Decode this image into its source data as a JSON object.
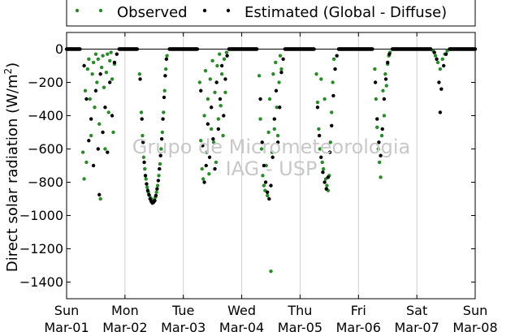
{
  "chart_data": {
    "type": "scatter",
    "ylabel": "Direct solar radiation (W/m",
    "ylabel_sup": "2",
    "ylabel_suffix": ")",
    "ylim": [
      -1500,
      100
    ],
    "yticks": [
      0,
      -200,
      -400,
      -600,
      -800,
      -1000,
      -1200,
      -1400
    ],
    "xlim": [
      0,
      7
    ],
    "xticks": [
      {
        "pos": 0,
        "day": "Sun",
        "date": "Mar-01"
      },
      {
        "pos": 1,
        "day": "Mon",
        "date": "Mar-02"
      },
      {
        "pos": 2,
        "day": "Tue",
        "date": "Mar-03"
      },
      {
        "pos": 3,
        "day": "Wed",
        "date": "Mar-04"
      },
      {
        "pos": 4,
        "day": "Thu",
        "date": "Mar-05"
      },
      {
        "pos": 5,
        "day": "Fri",
        "date": "Mar-06"
      },
      {
        "pos": 6,
        "day": "Sat",
        "date": "Mar-07"
      },
      {
        "pos": 7,
        "day": "Sun",
        "date": "Mar-08"
      }
    ],
    "grid_x": true,
    "legend_position": "top",
    "watermark": [
      "Grupo de Micrometeorologia",
      "IAG - USP"
    ],
    "series": [
      {
        "name": "Observed",
        "color": "#2a8a2a",
        "points": [
          [
            0.28,
            -620
          ],
          [
            0.3,
            -780
          ],
          [
            0.32,
            -250
          ],
          [
            0.34,
            -680
          ],
          [
            0.36,
            -120
          ],
          [
            0.38,
            -60
          ],
          [
            0.4,
            -300
          ],
          [
            0.42,
            -520
          ],
          [
            0.44,
            -150
          ],
          [
            0.46,
            -80
          ],
          [
            0.48,
            -350
          ],
          [
            0.5,
            -30
          ],
          [
            0.52,
            -200
          ],
          [
            0.54,
            -60
          ],
          [
            0.56,
            -450
          ],
          [
            0.58,
            -900
          ],
          [
            0.6,
            -110
          ],
          [
            0.62,
            -40
          ],
          [
            0.64,
            -230
          ],
          [
            0.66,
            -600
          ],
          [
            0.68,
            -140
          ],
          [
            0.7,
            -30
          ],
          [
            0.72,
            -380
          ],
          [
            0.74,
            -70
          ],
          [
            0.76,
            -20
          ],
          [
            0.78,
            -180
          ],
          [
            0.8,
            -500
          ],
          [
            0.82,
            -90
          ],
          [
            1.25,
            -150
          ],
          [
            1.28,
            -380
          ],
          [
            1.3,
            -520
          ],
          [
            1.32,
            -650
          ],
          [
            1.34,
            -720
          ],
          [
            1.36,
            -780
          ],
          [
            1.38,
            -830
          ],
          [
            1.4,
            -860
          ],
          [
            1.42,
            -880
          ],
          [
            1.44,
            -895
          ],
          [
            1.46,
            -905
          ],
          [
            1.48,
            -910
          ],
          [
            1.5,
            -905
          ],
          [
            1.52,
            -890
          ],
          [
            1.54,
            -860
          ],
          [
            1.56,
            -820
          ],
          [
            1.58,
            -760
          ],
          [
            1.6,
            -690
          ],
          [
            1.62,
            -600
          ],
          [
            1.64,
            -500
          ],
          [
            1.66,
            -380
          ],
          [
            1.68,
            -250
          ],
          [
            1.7,
            -120
          ],
          [
            1.72,
            -40
          ],
          [
            2.28,
            -200
          ],
          [
            2.3,
            -550
          ],
          [
            2.32,
            -720
          ],
          [
            2.34,
            -780
          ],
          [
            2.36,
            -400
          ],
          [
            2.38,
            -130
          ],
          [
            2.4,
            -620
          ],
          [
            2.42,
            -300
          ],
          [
            2.44,
            -750
          ],
          [
            2.46,
            -180
          ],
          [
            2.48,
            -480
          ],
          [
            2.5,
            -70
          ],
          [
            2.52,
            -560
          ],
          [
            2.54,
            -260
          ],
          [
            2.56,
            -680
          ],
          [
            2.58,
            -100
          ],
          [
            2.6,
            -420
          ],
          [
            2.62,
            -30
          ],
          [
            2.64,
            -340
          ],
          [
            2.66,
            -150
          ],
          [
            2.68,
            -520
          ],
          [
            2.7,
            -60
          ],
          [
            2.72,
            -260
          ],
          [
            2.74,
            -20
          ],
          [
            3.3,
            -160
          ],
          [
            3.32,
            -420
          ],
          [
            3.34,
            -600
          ],
          [
            3.36,
            -760
          ],
          [
            3.38,
            -820
          ],
          [
            3.4,
            -850
          ],
          [
            3.42,
            -700
          ],
          [
            3.44,
            -880
          ],
          [
            3.46,
            -500
          ],
          [
            3.48,
            -300
          ],
          [
            3.5,
            -1335
          ],
          [
            3.52,
            -620
          ],
          [
            3.54,
            -150
          ],
          [
            3.56,
            -480
          ],
          [
            3.58,
            -80
          ],
          [
            3.6,
            -350
          ],
          [
            3.62,
            -520
          ],
          [
            3.64,
            -200
          ],
          [
            3.66,
            -40
          ],
          [
            3.68,
            -120
          ],
          [
            4.28,
            -150
          ],
          [
            4.3,
            -320
          ],
          [
            4.32,
            -480
          ],
          [
            4.34,
            -600
          ],
          [
            4.36,
            -180
          ],
          [
            4.38,
            -680
          ],
          [
            4.4,
            -720
          ],
          [
            4.42,
            -300
          ],
          [
            4.44,
            -780
          ],
          [
            4.46,
            -820
          ],
          [
            4.48,
            -850
          ],
          [
            4.5,
            -760
          ],
          [
            4.52,
            -560
          ],
          [
            4.54,
            -380
          ],
          [
            4.56,
            -200
          ],
          [
            4.58,
            -60
          ],
          [
            5.28,
            -120
          ],
          [
            5.3,
            -300
          ],
          [
            5.32,
            -470
          ],
          [
            5.34,
            -600
          ],
          [
            5.36,
            -680
          ],
          [
            5.38,
            -770
          ],
          [
            5.4,
            -520
          ],
          [
            5.42,
            -250
          ],
          [
            5.44,
            -400
          ],
          [
            5.46,
            -150
          ],
          [
            5.48,
            -220
          ],
          [
            5.5,
            -90
          ],
          [
            5.52,
            -40
          ],
          [
            5.54,
            -20
          ],
          [
            6.28,
            -10
          ],
          [
            6.32,
            -40
          ],
          [
            6.36,
            -80
          ],
          [
            6.4,
            -120
          ],
          [
            6.44,
            -60
          ],
          [
            6.48,
            -30
          ],
          [
            6.52,
            -10
          ]
        ]
      },
      {
        "name": "Estimated (Global - Diffuse)",
        "color": "#000000",
        "points": [
          [
            0.3,
            -100
          ],
          [
            0.34,
            -300
          ],
          [
            0.38,
            -550
          ],
          [
            0.42,
            -420
          ],
          [
            0.46,
            -700
          ],
          [
            0.5,
            -250
          ],
          [
            0.54,
            -600
          ],
          [
            0.56,
            -875
          ],
          [
            0.58,
            -150
          ],
          [
            0.62,
            -500
          ],
          [
            0.66,
            -350
          ],
          [
            0.7,
            -620
          ],
          [
            0.74,
            -200
          ],
          [
            0.78,
            -400
          ],
          [
            0.82,
            -80
          ],
          [
            0.86,
            -30
          ],
          [
            1.26,
            -180
          ],
          [
            1.29,
            -420
          ],
          [
            1.31,
            -560
          ],
          [
            1.33,
            -680
          ],
          [
            1.35,
            -760
          ],
          [
            1.37,
            -810
          ],
          [
            1.39,
            -850
          ],
          [
            1.41,
            -875
          ],
          [
            1.43,
            -900
          ],
          [
            1.45,
            -915
          ],
          [
            1.47,
            -925
          ],
          [
            1.49,
            -920
          ],
          [
            1.51,
            -910
          ],
          [
            1.53,
            -880
          ],
          [
            1.55,
            -840
          ],
          [
            1.57,
            -790
          ],
          [
            1.59,
            -720
          ],
          [
            1.61,
            -640
          ],
          [
            1.63,
            -540
          ],
          [
            1.65,
            -420
          ],
          [
            1.67,
            -290
          ],
          [
            1.69,
            -160
          ],
          [
            1.71,
            -60
          ],
          [
            2.3,
            -250
          ],
          [
            2.33,
            -580
          ],
          [
            2.36,
            -800
          ],
          [
            2.39,
            -700
          ],
          [
            2.42,
            -450
          ],
          [
            2.45,
            -650
          ],
          [
            2.48,
            -350
          ],
          [
            2.51,
            -540
          ],
          [
            2.54,
            -720
          ],
          [
            2.57,
            -200
          ],
          [
            2.6,
            -480
          ],
          [
            2.63,
            -300
          ],
          [
            2.66,
            -100
          ],
          [
            2.69,
            -400
          ],
          [
            2.72,
            -180
          ],
          [
            2.75,
            -40
          ],
          [
            3.32,
            -300
          ],
          [
            3.35,
            -560
          ],
          [
            3.38,
            -700
          ],
          [
            3.41,
            -800
          ],
          [
            3.44,
            -860
          ],
          [
            3.47,
            -900
          ],
          [
            3.5,
            -820
          ],
          [
            3.53,
            -650
          ],
          [
            3.56,
            -420
          ],
          [
            3.59,
            -250
          ],
          [
            3.62,
            -560
          ],
          [
            3.65,
            -350
          ],
          [
            3.68,
            -140
          ],
          [
            3.71,
            -60
          ],
          [
            4.3,
            -350
          ],
          [
            4.33,
            -520
          ],
          [
            4.36,
            -650
          ],
          [
            4.39,
            -740
          ],
          [
            4.42,
            -800
          ],
          [
            4.45,
            -840
          ],
          [
            4.48,
            -770
          ],
          [
            4.51,
            -620
          ],
          [
            4.54,
            -460
          ],
          [
            4.57,
            -280
          ],
          [
            4.6,
            -120
          ],
          [
            4.63,
            -40
          ],
          [
            5.29,
            -200
          ],
          [
            5.32,
            -420
          ],
          [
            5.35,
            -560
          ],
          [
            5.38,
            -640
          ],
          [
            5.41,
            -480
          ],
          [
            5.44,
            -300
          ],
          [
            5.47,
            -180
          ],
          [
            5.5,
            -80
          ],
          [
            5.53,
            -30
          ],
          [
            6.3,
            -20
          ],
          [
            6.34,
            -60
          ],
          [
            6.38,
            -200
          ],
          [
            6.4,
            -380
          ],
          [
            6.42,
            -240
          ],
          [
            6.46,
            -100
          ],
          [
            6.5,
            -30
          ]
        ]
      }
    ]
  }
}
